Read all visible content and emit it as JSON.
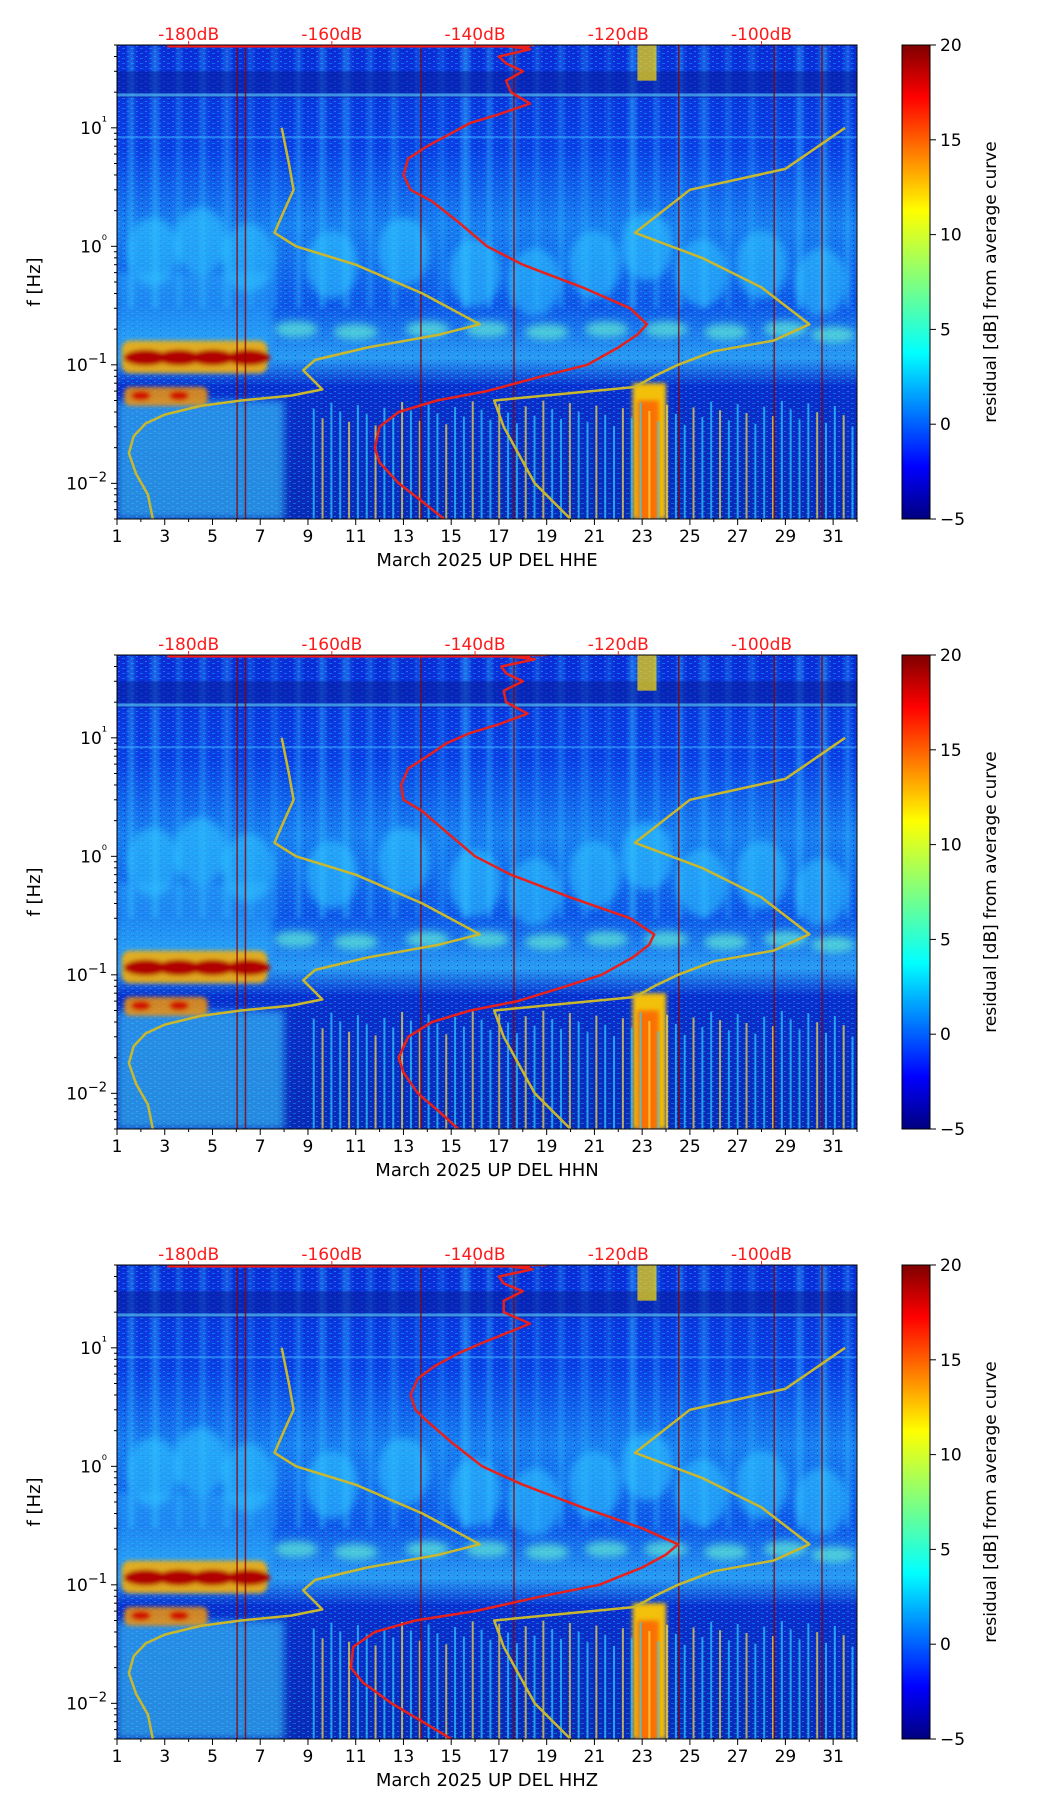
{
  "colors": {
    "db_label": "#ff1a1a",
    "red_curve": "#e8201c",
    "yellow_curve": "#c9b82e",
    "axis": "#000000"
  },
  "colorbar": {
    "label": "residual [dB] from average curve",
    "ticks": [
      "20",
      "15",
      "10",
      "5",
      "0",
      "−5"
    ],
    "range": [
      -5,
      20
    ],
    "colormap": "jet"
  },
  "chart_data": [
    {
      "type": "heatmap",
      "xlabel": "March 2025 UP DEL  HHE",
      "ylabel": "f [Hz]",
      "x_ticks": [
        "1",
        "3",
        "5",
        "7",
        "9",
        "11",
        "13",
        "15",
        "17",
        "19",
        "21",
        "23",
        "25",
        "27",
        "29",
        "31"
      ],
      "x_range": [
        1,
        32
      ],
      "y_scale": "log",
      "y_ticks": [
        "10−2",
        "10−1",
        "10⁰",
        "10¹"
      ],
      "y_range": [
        0.005,
        50
      ],
      "top_db_labels": [
        "-180dB",
        "-160dB",
        "-140dB",
        "-120dB",
        "-100dB"
      ],
      "series": [
        {
          "color": "red",
          "x": [
            14.7,
            13.8,
            12.8,
            12.0,
            11.8,
            12.0,
            12.8,
            14.4,
            16.5,
            18.8,
            20.7,
            22.0,
            22.8,
            23.2,
            22.5,
            20.5,
            18.0,
            16.5,
            15.3,
            14.2,
            13.3,
            13.0,
            13.2,
            14.0,
            15.0,
            15.8,
            17.0,
            18.3,
            17.5,
            17.3,
            18.0,
            17.3,
            17.0,
            18.3,
            17.0,
            17.5,
            18.0,
            18.5
          ],
          "y": [
            0.005,
            0.007,
            0.01,
            0.015,
            0.02,
            0.03,
            0.04,
            0.05,
            0.06,
            0.08,
            0.1,
            0.14,
            0.18,
            0.22,
            0.3,
            0.45,
            0.7,
            1.0,
            1.6,
            2.4,
            3.0,
            4.0,
            5.5,
            7.0,
            9.0,
            11.0,
            13.0,
            16.0,
            20.0,
            25.0,
            30.0,
            35.0,
            40.0,
            46.0,
            50.0,
            50.0,
            50.0,
            50.0
          ]
        },
        {
          "color": "yellow",
          "x": [
            2.5,
            2.3,
            1.8,
            1.5,
            1.7,
            2.2,
            3.0,
            4.5,
            6.2,
            8.3,
            9.6,
            8.8,
            9.3,
            11.5,
            14.5,
            16.2,
            13.8,
            11.0,
            8.5,
            7.6,
            8.0,
            8.4,
            8.2,
            7.9
          ],
          "y": [
            0.005,
            0.008,
            0.012,
            0.018,
            0.025,
            0.032,
            0.038,
            0.045,
            0.05,
            0.055,
            0.062,
            0.09,
            0.11,
            0.14,
            0.18,
            0.22,
            0.4,
            0.7,
            1.0,
            1.3,
            2.0,
            3.0,
            5.0,
            10.0
          ]
        },
        {
          "color": "yellow",
          "x": [
            20.0,
            18.5,
            17.2,
            16.8,
            22.7,
            23.5,
            24.5,
            26.0,
            28.5,
            30.0,
            28.0,
            25.5,
            22.7,
            25.0,
            29.0,
            31.5
          ],
          "y": [
            0.005,
            0.01,
            0.03,
            0.05,
            0.065,
            0.08,
            0.1,
            0.13,
            0.16,
            0.22,
            0.45,
            0.8,
            1.3,
            3.0,
            4.5,
            10.0
          ]
        }
      ]
    },
    {
      "type": "heatmap",
      "xlabel": "March 2025 UP DEL  HHN",
      "ylabel": "f [Hz]",
      "x_ticks": [
        "1",
        "3",
        "5",
        "7",
        "9",
        "11",
        "13",
        "15",
        "17",
        "19",
        "21",
        "23",
        "25",
        "27",
        "29",
        "31"
      ],
      "x_range": [
        1,
        32
      ],
      "y_scale": "log",
      "y_ticks": [
        "10−2",
        "10−1",
        "10⁰",
        "10¹"
      ],
      "y_range": [
        0.005,
        50
      ],
      "top_db_labels": [
        "-180dB",
        "-160dB",
        "-140dB",
        "-120dB",
        "-100dB"
      ],
      "series": [
        {
          "color": "red",
          "x": [
            15.3,
            14.5,
            13.6,
            13.0,
            12.8,
            13.2,
            14.2,
            15.8,
            17.8,
            19.8,
            21.3,
            22.6,
            23.3,
            23.5,
            22.5,
            20.0,
            17.5,
            16.0,
            14.8,
            13.8,
            13.0,
            12.9,
            13.2,
            14.0,
            14.8,
            15.8,
            17.0,
            18.2,
            17.3,
            17.2,
            18.0,
            17.3,
            17.1,
            18.5,
            17.0,
            17.6,
            18.4,
            19.0
          ],
          "y": [
            0.005,
            0.007,
            0.01,
            0.015,
            0.02,
            0.03,
            0.04,
            0.05,
            0.06,
            0.08,
            0.1,
            0.14,
            0.18,
            0.22,
            0.3,
            0.45,
            0.7,
            1.0,
            1.6,
            2.4,
            3.0,
            4.0,
            5.5,
            7.0,
            9.0,
            11.0,
            13.0,
            16.0,
            20.0,
            25.0,
            30.0,
            35.0,
            40.0,
            46.0,
            50.0,
            50.0,
            50.0,
            50.0
          ]
        },
        {
          "color": "yellow",
          "x": [
            2.5,
            2.3,
            1.8,
            1.5,
            1.7,
            2.2,
            3.0,
            4.5,
            6.2,
            8.3,
            9.6,
            8.8,
            9.3,
            11.5,
            14.5,
            16.2,
            13.8,
            11.0,
            8.5,
            7.6,
            8.0,
            8.4,
            8.2,
            7.9
          ],
          "y": [
            0.005,
            0.008,
            0.012,
            0.018,
            0.025,
            0.032,
            0.038,
            0.045,
            0.05,
            0.055,
            0.062,
            0.09,
            0.11,
            0.14,
            0.18,
            0.22,
            0.4,
            0.7,
            1.0,
            1.3,
            2.0,
            3.0,
            5.0,
            10.0
          ]
        },
        {
          "color": "yellow",
          "x": [
            20.0,
            18.5,
            17.2,
            16.8,
            22.7,
            23.5,
            24.5,
            26.0,
            28.5,
            30.0,
            28.0,
            25.5,
            22.7,
            25.0,
            29.0,
            31.5
          ],
          "y": [
            0.005,
            0.01,
            0.03,
            0.05,
            0.065,
            0.08,
            0.1,
            0.13,
            0.16,
            0.22,
            0.45,
            0.8,
            1.3,
            3.0,
            4.5,
            10.0
          ]
        }
      ]
    },
    {
      "type": "heatmap",
      "xlabel": "March 2025 UP DEL  HHZ",
      "ylabel": "f [Hz]",
      "x_ticks": [
        "1",
        "3",
        "5",
        "7",
        "9",
        "11",
        "13",
        "15",
        "17",
        "19",
        "21",
        "23",
        "25",
        "27",
        "29",
        "31"
      ],
      "x_range": [
        1,
        32
      ],
      "y_scale": "log",
      "y_ticks": [
        "10−2",
        "10−1",
        "10⁰",
        "10¹"
      ],
      "y_range": [
        0.005,
        50
      ],
      "top_db_labels": [
        "-180dB",
        "-160dB",
        "-140dB",
        "-120dB",
        "-100dB"
      ],
      "series": [
        {
          "color": "red",
          "x": [
            15.0,
            13.8,
            12.5,
            11.3,
            10.8,
            10.9,
            11.8,
            13.5,
            16.0,
            18.8,
            21.2,
            23.0,
            24.0,
            24.5,
            23.0,
            20.5,
            18.0,
            16.3,
            15.0,
            14.0,
            13.5,
            13.3,
            13.6,
            14.3,
            15.3,
            16.3,
            17.2,
            18.3,
            17.2,
            17.2,
            18.0,
            17.2,
            17.0,
            18.4,
            17.0,
            17.6,
            18.4,
            19.0
          ],
          "y": [
            0.005,
            0.007,
            0.01,
            0.015,
            0.02,
            0.03,
            0.04,
            0.05,
            0.06,
            0.08,
            0.1,
            0.14,
            0.18,
            0.22,
            0.3,
            0.45,
            0.7,
            1.0,
            1.6,
            2.4,
            3.0,
            4.0,
            5.5,
            7.0,
            9.0,
            11.0,
            13.0,
            16.0,
            20.0,
            25.0,
            30.0,
            35.0,
            40.0,
            46.0,
            50.0,
            50.0,
            50.0,
            50.0
          ]
        },
        {
          "color": "yellow",
          "x": [
            2.5,
            2.3,
            1.8,
            1.5,
            1.7,
            2.2,
            3.0,
            4.5,
            6.2,
            8.3,
            9.6,
            8.8,
            9.3,
            11.5,
            14.5,
            16.2,
            13.8,
            11.0,
            8.5,
            7.6,
            8.0,
            8.4,
            8.2,
            7.9
          ],
          "y": [
            0.005,
            0.008,
            0.012,
            0.018,
            0.025,
            0.032,
            0.038,
            0.045,
            0.05,
            0.055,
            0.062,
            0.09,
            0.11,
            0.14,
            0.18,
            0.22,
            0.4,
            0.7,
            1.0,
            1.3,
            2.0,
            3.0,
            5.0,
            10.0
          ]
        },
        {
          "color": "yellow",
          "x": [
            20.0,
            18.5,
            17.2,
            16.8,
            22.7,
            23.5,
            24.5,
            26.0,
            28.5,
            30.0,
            28.0,
            25.5,
            22.7,
            25.0,
            29.0,
            31.5
          ],
          "y": [
            0.005,
            0.01,
            0.03,
            0.05,
            0.065,
            0.08,
            0.1,
            0.13,
            0.16,
            0.22,
            0.45,
            0.8,
            1.3,
            3.0,
            4.5,
            10.0
          ]
        }
      ]
    }
  ]
}
